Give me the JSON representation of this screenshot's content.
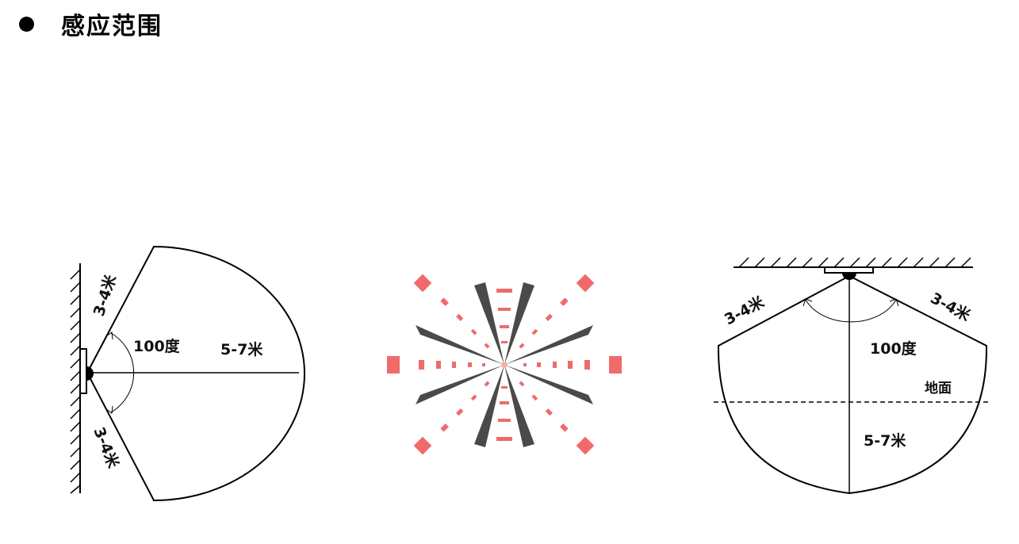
{
  "header": {
    "title": "感应范围"
  },
  "side_view": {
    "upper_range": "3-4米",
    "lower_range": "3-4米",
    "angle": "100度",
    "distance": "5-7米"
  },
  "pattern": {
    "colors": {
      "beam": "#4a4a4a",
      "zone": "#ef6b6b"
    }
  },
  "ceiling_view": {
    "left_range": "3-4米",
    "right_range": "3-4米",
    "angle": "100度",
    "ground": "地面",
    "distance": "5-7米"
  }
}
